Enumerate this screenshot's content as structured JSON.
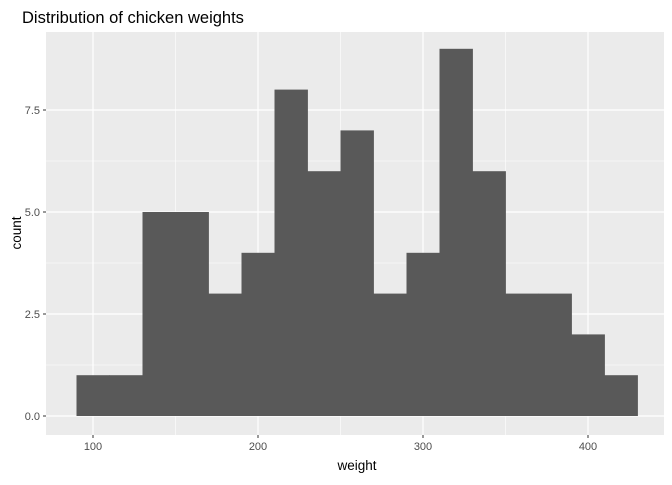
{
  "chart_data": {
    "type": "bar",
    "title": "Distribution of chicken weights",
    "xlabel": "weight",
    "ylabel": "count",
    "bin_width": 20,
    "x": [
      100,
      120,
      140,
      160,
      180,
      200,
      220,
      240,
      260,
      280,
      300,
      320,
      340,
      360,
      380,
      400,
      420
    ],
    "values": [
      1,
      1,
      5,
      5,
      3,
      4,
      8,
      6,
      7,
      3,
      4,
      9,
      6,
      3,
      3,
      2,
      1
    ],
    "xlim": [
      80,
      440
    ],
    "ylim": [
      0,
      9
    ],
    "x_ticks": [
      100,
      200,
      300,
      400
    ],
    "x_tick_labels": [
      "100",
      "200",
      "300",
      "400"
    ],
    "y_ticks": [
      0,
      2.5,
      5,
      7.5
    ],
    "y_tick_labels": [
      "0.0",
      "2.5",
      "5.0",
      "7.5"
    ],
    "grid": true,
    "colors": {
      "panel": "#ebebeb",
      "grid": "#ffffff",
      "bar": "#595959"
    }
  }
}
